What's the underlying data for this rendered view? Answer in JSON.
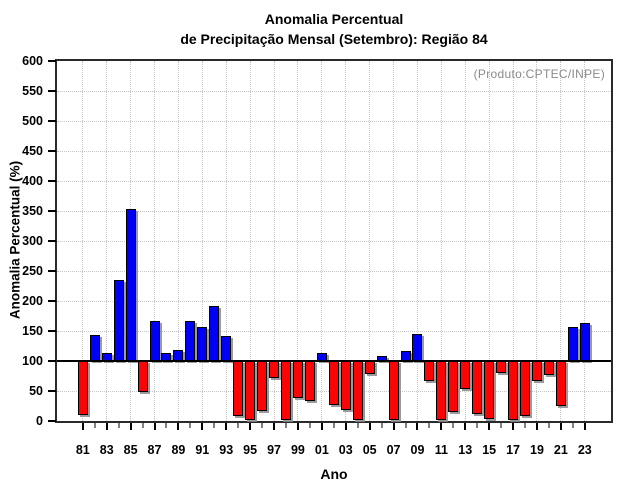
{
  "title": {
    "line1": "Anomalia Percentual",
    "line2": "de Precipitação Mensal (Setembro): Região 84"
  },
  "annotation": "(Produto:CPTEC/INPE)",
  "chart_data": {
    "type": "bar",
    "title": "Anomalia Percentual de Precipitação Mensal (Setembro): Região 84",
    "xlabel": "Ano",
    "ylabel": "Anomalia Percentual (%)",
    "ylim": [
      0,
      600
    ],
    "ytick_step": 50,
    "baseline": 100,
    "grid": true,
    "legend": "none",
    "x_tick_labels": [
      "81",
      "83",
      "85",
      "87",
      "89",
      "91",
      "93",
      "95",
      "97",
      "99",
      "01",
      "03",
      "05",
      "07",
      "09",
      "11",
      "13",
      "15",
      "17",
      "19",
      "21",
      "23"
    ],
    "years": [
      1981,
      1982,
      1983,
      1984,
      1985,
      1986,
      1987,
      1988,
      1989,
      1990,
      1991,
      1992,
      1993,
      1994,
      1995,
      1996,
      1997,
      1998,
      1999,
      2000,
      2001,
      2002,
      2003,
      2004,
      2005,
      2006,
      2007,
      2008,
      2009,
      2010,
      2011,
      2012,
      2013,
      2014,
      2015,
      2016,
      2017,
      2018,
      2019,
      2020,
      2021,
      2022,
      2023
    ],
    "values": [
      10,
      143,
      114,
      235,
      353,
      48,
      167,
      113,
      118,
      167,
      156,
      191,
      142,
      9,
      1,
      17,
      72,
      2,
      39,
      34,
      114,
      26,
      18,
      1,
      79,
      108,
      1,
      116,
      145,
      66,
      1,
      15,
      53,
      12,
      3,
      80,
      1,
      9,
      67,
      76,
      25,
      156,
      163
    ],
    "colors": {
      "above_baseline": "#0000f5",
      "below_baseline": "#fa0505",
      "baseline_line": "#000000",
      "grid": "#c6c6c6",
      "annotation_text": "#8a8a8a"
    }
  }
}
